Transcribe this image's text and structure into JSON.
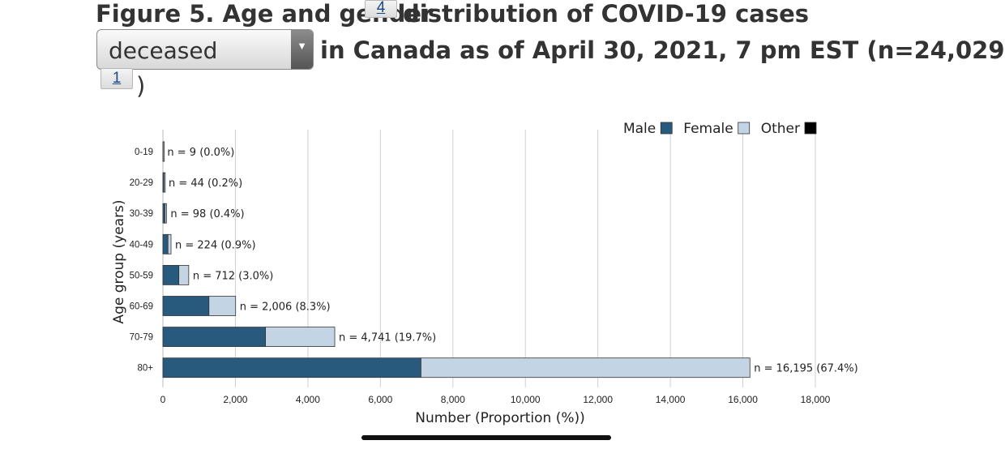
{
  "header": {
    "title_line1": "Figure 5. Age and gender",
    "footnote_a": "4",
    "title_line1_end": "distribution of COVID-19 cases",
    "selector_value": "deceased",
    "title_line2": "in Canada as of April 30, 2021, 7 pm EST (n=24,029",
    "footnote_b": "1",
    "close_paren": ")"
  },
  "chart_data": {
    "type": "bar",
    "orientation": "horizontal",
    "stacked": true,
    "categories": [
      "0-19",
      "20-29",
      "30-39",
      "40-49",
      "50-59",
      "60-69",
      "70-79",
      "80+"
    ],
    "series": [
      {
        "name": "Male",
        "color": "#285a7e",
        "values": [
          5,
          30,
          60,
          140,
          440,
          1270,
          2830,
          7120
        ]
      },
      {
        "name": "Female",
        "color": "#c3d5e4",
        "values": [
          4,
          14,
          38,
          84,
          272,
          736,
          1911,
          9075
        ]
      },
      {
        "name": "Other",
        "color": "#000000",
        "values": [
          0,
          0,
          0,
          0,
          0,
          0,
          0,
          0
        ]
      }
    ],
    "bar_labels": [
      "n = 9 (0.0%)",
      "n = 44 (0.2%)",
      "n = 98 (0.4%)",
      "n = 224 (0.9%)",
      "n = 712 (3.0%)",
      "n = 2,006 (8.3%)",
      "n = 4,741 (19.7%)",
      "n = 16,195 (67.4%)"
    ],
    "xlabel": "Number (Proportion (%))",
    "ylabel": "Age group (years)",
    "xlim": [
      0,
      18000
    ],
    "xticks": [
      0,
      2000,
      4000,
      6000,
      8000,
      10000,
      12000,
      14000,
      16000,
      18000
    ],
    "xtick_labels": [
      "0",
      "2,000",
      "4,000",
      "6,000",
      "8,000",
      "10,000",
      "12,000",
      "14,000",
      "16,000",
      "18,000"
    ],
    "grid": "vertical",
    "legend_position": "top-right"
  }
}
